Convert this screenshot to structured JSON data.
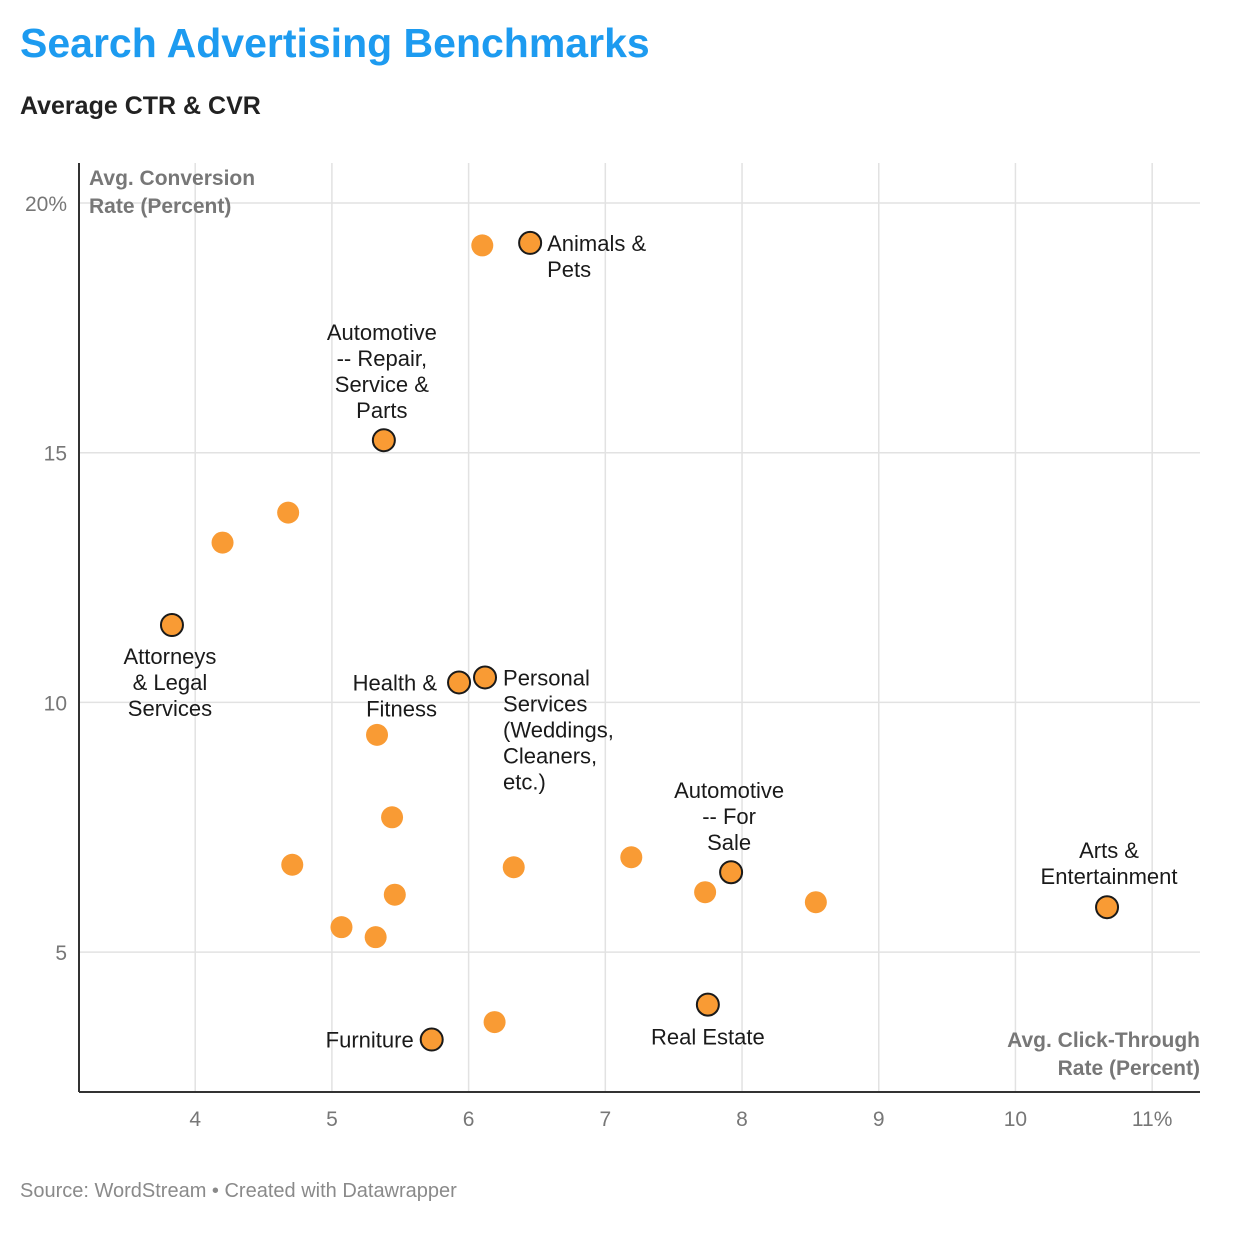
{
  "title": "Search Advertising Benchmarks",
  "subtitle": "Average CTR & CVR",
  "source": "Source: WordStream • Created with Datawrapper",
  "chart_data": {
    "type": "scatter",
    "title": "Search Advertising Benchmarks",
    "subtitle": "Average CTR & CVR",
    "xlabel": [
      "Avg. Click-Through",
      "Rate (Percent)"
    ],
    "ylabel": [
      "Avg. Conversion",
      "Rate (Percent)"
    ],
    "xlim": [
      3.15,
      11.35
    ],
    "ylim": [
      2.2,
      20.8
    ],
    "x_ticks": [
      {
        "value": 4,
        "label": "4"
      },
      {
        "value": 5,
        "label": "5"
      },
      {
        "value": 6,
        "label": "6"
      },
      {
        "value": 7,
        "label": "7"
      },
      {
        "value": 8,
        "label": "8"
      },
      {
        "value": 9,
        "label": "9"
      },
      {
        "value": 10,
        "label": "10"
      },
      {
        "value": 11,
        "label": "11%"
      }
    ],
    "y_ticks": [
      {
        "value": 5,
        "label": "5"
      },
      {
        "value": 10,
        "label": "10"
      },
      {
        "value": 15,
        "label": "15"
      },
      {
        "value": 20,
        "label": "20%"
      }
    ],
    "grid": true,
    "colors": {
      "point": "#f99b34",
      "highlight_stroke": "#1a1a1a",
      "grid": "#e2e2e2",
      "axis": "#333333"
    },
    "points": [
      {
        "x": 6.45,
        "y": 19.2,
        "label": [
          "Animals &",
          "Pets"
        ],
        "highlight": true
      },
      {
        "x": 6.1,
        "y": 19.15
      },
      {
        "x": 5.38,
        "y": 15.25,
        "label": [
          "Automotive",
          "-- Repair,",
          "Service &",
          "Parts"
        ],
        "highlight": true
      },
      {
        "x": 4.68,
        "y": 13.8
      },
      {
        "x": 4.2,
        "y": 13.2
      },
      {
        "x": 3.83,
        "y": 11.55,
        "label": [
          "Attorneys",
          "& Legal",
          "Services"
        ],
        "highlight": true
      },
      {
        "x": 6.12,
        "y": 10.5,
        "label": [
          "Personal",
          "Services",
          "(Weddings,",
          "Cleaners,",
          "etc.)"
        ],
        "highlight": true
      },
      {
        "x": 5.93,
        "y": 10.4,
        "label": [
          "Health &",
          "Fitness"
        ],
        "highlight": true
      },
      {
        "x": 5.33,
        "y": 9.35
      },
      {
        "x": 5.44,
        "y": 7.7
      },
      {
        "x": 4.71,
        "y": 6.75
      },
      {
        "x": 6.33,
        "y": 6.7
      },
      {
        "x": 7.19,
        "y": 6.9
      },
      {
        "x": 7.92,
        "y": 6.6,
        "label": [
          "Automotive",
          "-- For",
          "Sale"
        ],
        "highlight": true
      },
      {
        "x": 7.73,
        "y": 6.2
      },
      {
        "x": 8.54,
        "y": 6.0
      },
      {
        "x": 10.67,
        "y": 5.9,
        "label": [
          "Arts &",
          "Entertainment"
        ],
        "highlight": true
      },
      {
        "x": 5.46,
        "y": 6.15
      },
      {
        "x": 5.07,
        "y": 5.5
      },
      {
        "x": 5.32,
        "y": 5.3
      },
      {
        "x": 7.75,
        "y": 3.95,
        "label": [
          "Real Estate"
        ],
        "highlight": true
      },
      {
        "x": 6.19,
        "y": 3.6
      },
      {
        "x": 5.73,
        "y": 3.25,
        "label": [
          "Furniture"
        ],
        "highlight": true
      }
    ]
  }
}
